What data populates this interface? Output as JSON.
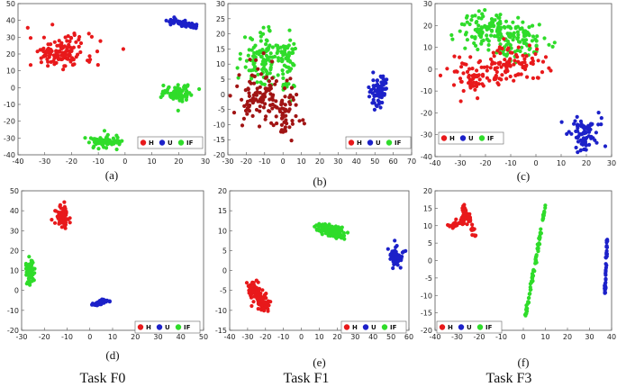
{
  "colors": {
    "H": "#e8191b",
    "U": "#1c21c9",
    "IF": "#2fdc2a",
    "H_dark": "#a11414"
  },
  "legend_labels": [
    "H",
    "U",
    "IF"
  ],
  "task_labels": [
    "Task F0",
    "Task F1",
    "Task F3"
  ],
  "chart_data": [
    {
      "type": "scatter",
      "panel": "(a)",
      "title": "",
      "xlabel": "",
      "ylabel": "",
      "xlim": [
        -40,
        30
      ],
      "ylim": [
        -40,
        50
      ],
      "xticks": [
        -40,
        -30,
        -20,
        -10,
        0,
        10,
        20,
        30
      ],
      "yticks": [
        -40,
        -30,
        -20,
        -10,
        0,
        10,
        20,
        30,
        40,
        50
      ],
      "clusters": [
        {
          "label": "H",
          "center": [
            -24,
            21
          ],
          "spread": [
            6,
            5
          ],
          "n": 130,
          "shape": "blob"
        },
        {
          "label": "U",
          "center": [
            17,
            40
          ],
          "spread": [
            3,
            2
          ],
          "n": 70,
          "shape": "line",
          "end": [
            27,
            36
          ]
        },
        {
          "label": "IF",
          "center": [
            20,
            -3
          ],
          "spread": [
            2.5,
            2.5
          ],
          "n": 75,
          "shape": "blob"
        },
        {
          "label": "IF",
          "center": [
            -8,
            -32
          ],
          "spread": [
            3,
            2
          ],
          "n": 70,
          "shape": "blob"
        }
      ]
    },
    {
      "type": "scatter",
      "panel": "(b)",
      "title": "",
      "xlabel": "",
      "ylabel": "",
      "xlim": [
        -30,
        70
      ],
      "ylim": [
        -20,
        30
      ],
      "xticks": [
        -30,
        -20,
        -10,
        0,
        10,
        20,
        30,
        40,
        50,
        60,
        70
      ],
      "yticks": [
        -20,
        -15,
        -10,
        -5,
        0,
        5,
        10,
        15,
        20,
        25,
        30
      ],
      "clusters": [
        {
          "label": "IF",
          "center": [
            -12,
            12
          ],
          "spread": [
            6,
            5
          ],
          "n": 110,
          "shape": "blob"
        },
        {
          "label": "IF",
          "center": [
            2,
            10
          ],
          "spread": [
            3,
            5
          ],
          "n": 60,
          "shape": "blob"
        },
        {
          "label": "H",
          "center": [
            -13,
            0
          ],
          "spread": [
            6,
            5
          ],
          "n": 90,
          "shape": "blob",
          "dark": true
        },
        {
          "label": "H",
          "center": [
            2,
            -6
          ],
          "spread": [
            4,
            4
          ],
          "n": 60,
          "shape": "blob",
          "dark": true
        },
        {
          "label": "U",
          "center": [
            52,
            1
          ],
          "spread": [
            2.5,
            2.5
          ],
          "n": 70,
          "shape": "blob"
        }
      ]
    },
    {
      "type": "scatter",
      "panel": "(c)",
      "title": "",
      "xlabel": "",
      "ylabel": "",
      "xlim": [
        -40,
        30
      ],
      "ylim": [
        -40,
        30
      ],
      "xticks": [
        -40,
        -30,
        -20,
        -10,
        0,
        10,
        20,
        30
      ],
      "yticks": [
        -40,
        -30,
        -20,
        -10,
        0,
        10,
        20,
        30
      ],
      "clusters": [
        {
          "label": "IF",
          "center": [
            -20,
            18
          ],
          "spread": [
            5,
            4
          ],
          "n": 100,
          "shape": "blob"
        },
        {
          "label": "IF",
          "center": [
            -7,
            13
          ],
          "spread": [
            5,
            5
          ],
          "n": 100,
          "shape": "blob"
        },
        {
          "label": "H",
          "center": [
            -24,
            -3
          ],
          "spread": [
            5,
            4
          ],
          "n": 80,
          "shape": "blob"
        },
        {
          "label": "H",
          "center": [
            -8,
            3
          ],
          "spread": [
            6,
            4
          ],
          "n": 80,
          "shape": "blob"
        },
        {
          "label": "U",
          "center": [
            19,
            -30
          ],
          "spread": [
            3,
            4
          ],
          "n": 80,
          "shape": "blob"
        }
      ]
    },
    {
      "type": "scatter",
      "panel": "(d)",
      "title": "",
      "xlabel": "",
      "ylabel": "",
      "xlim": [
        -30,
        50
      ],
      "ylim": [
        -20,
        50
      ],
      "xticks": [
        -30,
        -20,
        -10,
        0,
        10,
        20,
        30,
        40,
        50
      ],
      "yticks": [
        -20,
        -10,
        0,
        10,
        20,
        30,
        40,
        50
      ],
      "clusters": [
        {
          "label": "H",
          "center": [
            -12,
            37
          ],
          "spread": [
            1.5,
            2.5
          ],
          "n": 70,
          "shape": "blob"
        },
        {
          "label": "IF",
          "center": [
            -26,
            9
          ],
          "spread": [
            1,
            3
          ],
          "n": 60,
          "shape": "blob"
        },
        {
          "label": "U",
          "center": [
            2,
            -7
          ],
          "spread": [
            3,
            1.2
          ],
          "n": 60,
          "shape": "line",
          "end": [
            7,
            -5
          ]
        }
      ]
    },
    {
      "type": "scatter",
      "panel": "(e)",
      "title": "",
      "xlabel": "",
      "ylabel": "",
      "xlim": [
        -40,
        60
      ],
      "ylim": [
        -15,
        20
      ],
      "xticks": [
        -40,
        -30,
        -20,
        -10,
        0,
        10,
        20,
        30,
        40,
        50,
        60
      ],
      "yticks": [
        -15,
        -10,
        -5,
        0,
        5,
        10,
        15,
        20
      ],
      "clusters": [
        {
          "label": "IF",
          "center": [
            10,
            11
          ],
          "spread": [
            6,
            2
          ],
          "n": 130,
          "shape": "line",
          "end": [
            22,
            9
          ]
        },
        {
          "label": "H",
          "center": [
            -28,
            -4
          ],
          "spread": [
            5,
            2.5
          ],
          "n": 120,
          "shape": "line",
          "end": [
            -20,
            -9
          ]
        },
        {
          "label": "U",
          "center": [
            53,
            3.5
          ],
          "spread": [
            2,
            1.2
          ],
          "n": 50,
          "shape": "blob"
        }
      ]
    },
    {
      "type": "scatter",
      "panel": "(f)",
      "title": "",
      "xlabel": "",
      "ylabel": "",
      "xlim": [
        -40,
        40
      ],
      "ylim": [
        -20,
        20
      ],
      "xticks": [
        -40,
        -30,
        -20,
        -10,
        0,
        10,
        20,
        30,
        40
      ],
      "yticks": [
        -20,
        -15,
        -10,
        -5,
        0,
        5,
        10,
        15,
        20
      ],
      "clusters": [
        {
          "label": "H",
          "center": [
            -33,
            10
          ],
          "spread": [
            2,
            1.5
          ],
          "n": 50,
          "shape": "line",
          "end": [
            -24,
            13
          ]
        },
        {
          "label": "H",
          "center": [
            -27,
            15
          ],
          "spread": [
            1.5,
            2
          ],
          "n": 40,
          "shape": "line",
          "end": [
            -22,
            7
          ]
        },
        {
          "label": "IF",
          "center": [
            1,
            -16
          ],
          "spread": [
            0.6,
            0.6
          ],
          "n": 80,
          "shape": "line",
          "end": [
            10,
            16
          ]
        },
        {
          "label": "U",
          "center": [
            37,
            -10
          ],
          "spread": [
            0.5,
            0.5
          ],
          "n": 40,
          "shape": "line",
          "end": [
            38,
            6
          ]
        }
      ]
    }
  ]
}
